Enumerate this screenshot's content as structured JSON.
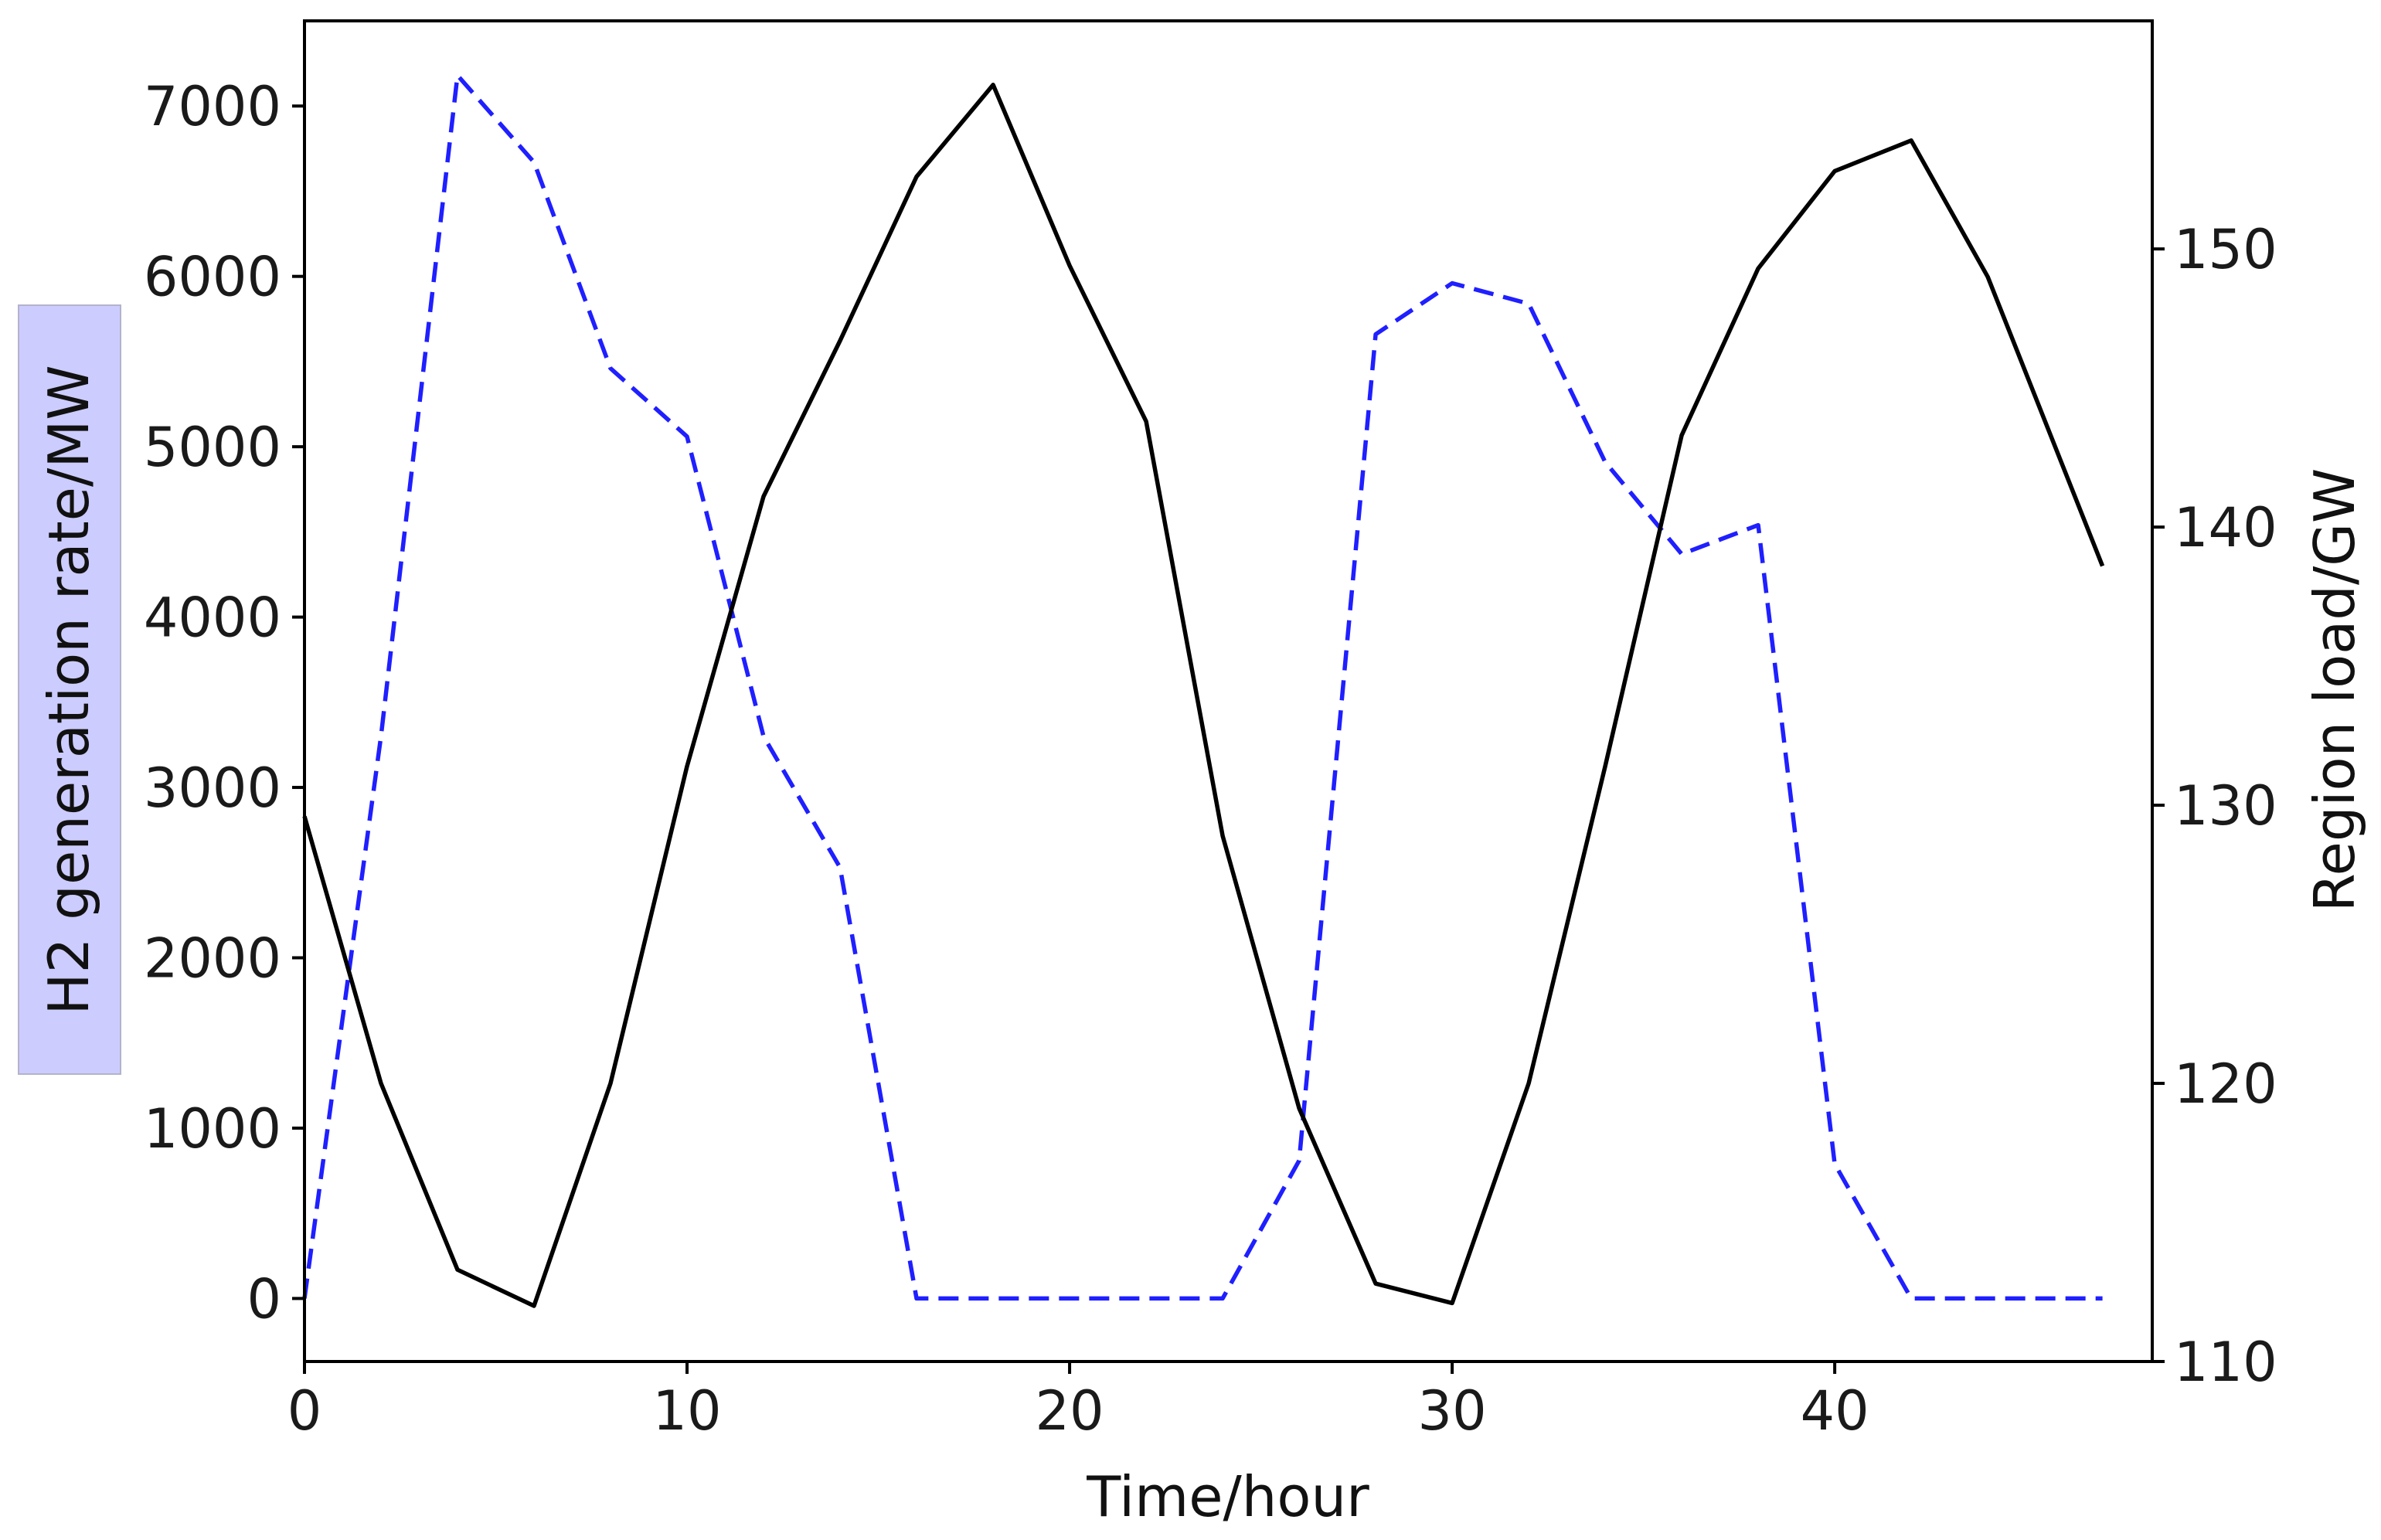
{
  "chart_data": {
    "type": "line",
    "xlabel": "Time/hour",
    "ylabel_left": "H2 generation rate/MW",
    "ylabel_right": "Region load/GW",
    "xlim": [
      0,
      48.3
    ],
    "ylim_left": [
      -370,
      7500
    ],
    "ylim_right": [
      110,
      158.2
    ],
    "xticks": [
      0,
      10,
      20,
      30,
      40
    ],
    "yticks_left": [
      0,
      1000,
      2000,
      3000,
      4000,
      5000,
      6000,
      7000
    ],
    "yticks_right": [
      110,
      120,
      130,
      140,
      150
    ],
    "grid": false,
    "legend": "none",
    "series": [
      {
        "axis": "left",
        "style": "dashed",
        "color": "#1f1fff",
        "x": [
          0,
          2,
          4,
          6,
          8,
          10,
          12,
          14,
          16,
          18,
          20,
          22,
          24,
          26,
          28,
          30,
          32,
          34,
          36,
          38,
          40,
          42,
          44,
          47
        ],
        "values": [
          0,
          3300,
          7180,
          6670,
          5460,
          5060,
          3300,
          2530,
          0,
          0,
          0,
          0,
          0,
          810,
          5660,
          5960,
          5840,
          4910,
          4370,
          4540,
          790,
          0,
          0,
          0
        ]
      },
      {
        "axis": "right",
        "style": "solid",
        "color": "#000000",
        "x": [
          0,
          2,
          4,
          6,
          8,
          10,
          12,
          14,
          16,
          18,
          20,
          22,
          24,
          26,
          28,
          30,
          32,
          34,
          36,
          38,
          40,
          42,
          44,
          47
        ],
        "values": [
          129.6,
          120.0,
          113.3,
          112.0,
          120.0,
          131.4,
          141.1,
          146.7,
          152.6,
          155.9,
          149.4,
          143.8,
          128.9,
          119.1,
          112.8,
          112.1,
          120.0,
          131.4,
          143.3,
          149.3,
          152.8,
          153.9,
          149.0,
          138.6
        ]
      }
    ]
  }
}
